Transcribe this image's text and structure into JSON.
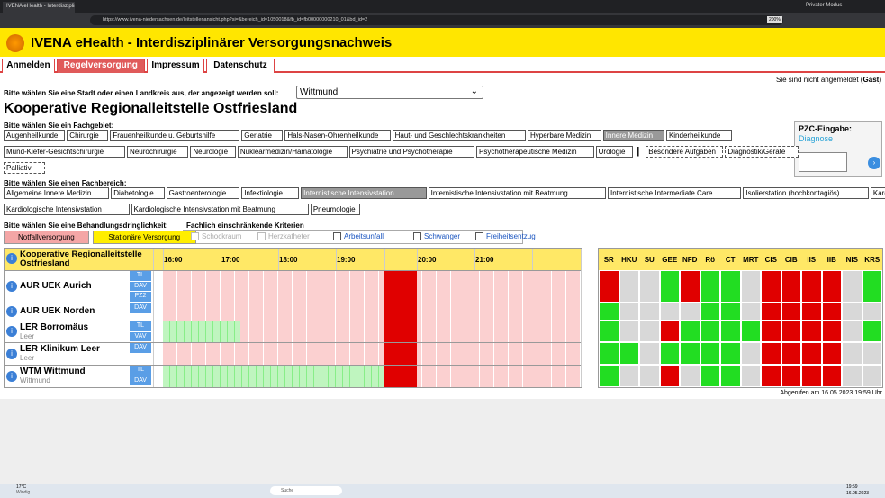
{
  "browser": {
    "tab_title": "IVENA eHealth - Interdisziplinä",
    "url": "https://www.ivena-niedersachsen.de/leitstellenansicht.php?si=&bereich_id=1050018&fb_id=fb00000000210_01&bd_id=2",
    "zoom": "200%",
    "private_mode": "Privater Modus"
  },
  "header": {
    "title": "IVENA eHealth - Interdisziplinärer Versorgungsnachweis"
  },
  "nav": [
    {
      "label": "Anmelden",
      "active": false
    },
    {
      "label": "Regelversorgung",
      "active": true
    },
    {
      "label": "Impressum",
      "active": false
    },
    {
      "label": "Datenschutz",
      "active": false
    }
  ],
  "login": {
    "text": "Sie sind nicht angemeldet",
    "user": "(Gast)"
  },
  "city": {
    "prompt": "Bitte wählen Sie eine Stadt oder einen Landkreis aus, der angezeigt werden soll:",
    "selected": "Wittmund"
  },
  "heading": "Kooperative Regionalleitstelle Ostfriesland",
  "fachgebiet": {
    "label": "Bitte wählen Sie ein Fachgebiet:",
    "rows": [
      [
        {
          "label": "Augenheilkunde"
        },
        {
          "label": "Chirurgie"
        },
        {
          "label": "Frauenheilkunde u. Geburtshilfe"
        },
        {
          "label": "Geriatrie"
        },
        {
          "label": "Hals-Nasen-Ohrenheilkunde"
        },
        {
          "label": "Haut- und Geschlechtskrankheiten"
        },
        {
          "label": "Hyperbare Medizin"
        },
        {
          "label": "Innere Medizin",
          "selected": true
        },
        {
          "label": "Kinderheilkunde"
        }
      ],
      [
        {
          "label": "Mund-Kiefer-Gesichtschirurgie"
        },
        {
          "label": "Neurochirurgie"
        },
        {
          "label": "Neurologie"
        },
        {
          "label": "Nuklearmedizin/Hämatologie"
        },
        {
          "label": "Psychiatrie und Psychotherapie"
        },
        {
          "label": "Psychotherapeutische Medizin"
        },
        {
          "label": "Urologie"
        },
        {
          "label": "|",
          "separator": true
        },
        {
          "label": "Besondere Aufgaben",
          "dashed": true
        },
        {
          "label": "Diagnostik/Geräte",
          "dashed": true
        }
      ],
      [
        {
          "label": "Palliativ",
          "dashed": true
        }
      ]
    ]
  },
  "fachbereich": {
    "label": "Bitte wählen Sie einen Fachbereich:",
    "rows": [
      [
        {
          "label": "Allgemeine Innere Medizin"
        },
        {
          "label": "Diabetologie"
        },
        {
          "label": "Gastroenterologie"
        },
        {
          "label": "Infektiologie"
        },
        {
          "label": "Internistische Intensivstation",
          "selected": true
        },
        {
          "label": "Internistische Intensivstation mit Beatmung"
        },
        {
          "label": "Internistische Intermediate Care"
        },
        {
          "label": "Isolierstation (hochkontagiös)"
        },
        {
          "label": "Kardiologie"
        }
      ],
      [
        {
          "label": "Kardiologische Intensivstation"
        },
        {
          "label": "Kardiologische Intensivstation mit Beatmung"
        },
        {
          "label": "Pneumologie"
        }
      ]
    ]
  },
  "dringlichkeit": {
    "label": "Bitte wählen Sie eine Behandlungsdringlichkeit:",
    "buttons": [
      {
        "label": "Notfallversorgung",
        "color": "#f4a6a6"
      },
      {
        "label": "Stationäre Versorgung",
        "color": "#ffee00"
      }
    ]
  },
  "kriterien": {
    "label": "Fachlich einschränkende Kriterien",
    "items": [
      {
        "label": "Schockraum",
        "disabled": true
      },
      {
        "label": "Herzkatheter",
        "disabled": true
      },
      {
        "label": "Arbeitsunfall",
        "disabled": false
      },
      {
        "label": "Schwanger",
        "disabled": false
      },
      {
        "label": "Freiheitsentzug",
        "disabled": false
      }
    ]
  },
  "pzc": {
    "title": "PZC-Eingabe:",
    "link": "Diagnose"
  },
  "table": {
    "region": "Kooperative Regionalleitstelle Ostfriesland",
    "info": "i",
    "times": [
      "16:00",
      "17:00",
      "18:00",
      "19:00",
      "20:00",
      "21:00"
    ],
    "status_columns": [
      "SR",
      "HKU",
      "SU",
      "GEE",
      "NFD",
      "Rö",
      "CT",
      "MRT",
      "CIS",
      "CIB",
      "IIS",
      "IIB",
      "NIS",
      "KRS"
    ],
    "rows": [
      {
        "name": "AUR UEK Aurich",
        "tags": [
          "TL",
          "DAV",
          "PZ2"
        ],
        "status": [
          "#e00000",
          "#d8d8d8",
          "#d8d8d8",
          "#22dd22",
          "#e00000",
          "#22dd22",
          "#22dd22",
          "#d8d8d8",
          "#e00000",
          "#e00000",
          "#e00000",
          "#e00000",
          "#d8d8d8",
          "#22dd22"
        ]
      },
      {
        "name": "AUR UEK Norden",
        "tags": [
          "DAV"
        ],
        "status": [
          "#22dd22",
          "#d8d8d8",
          "#d8d8d8",
          "#d8d8d8",
          "#d8d8d8",
          "#22dd22",
          "#22dd22",
          "#d8d8d8",
          "#e00000",
          "#e00000",
          "#e00000",
          "#e00000",
          "#d8d8d8",
          "#d8d8d8"
        ]
      },
      {
        "name": "LER Borromäus",
        "place": "Leer",
        "tags": [
          "TL",
          "VAV"
        ],
        "status": [
          "#22dd22",
          "#d8d8d8",
          "#d8d8d8",
          "#e00000",
          "#22dd22",
          "#22dd22",
          "#22dd22",
          "#22dd22",
          "#e00000",
          "#e00000",
          "#e00000",
          "#e00000",
          "#d8d8d8",
          "#22dd22"
        ]
      },
      {
        "name": "LER Klinikum Leer",
        "place": "Leer",
        "tags": [
          "DAV"
        ],
        "status": [
          "#22dd22",
          "#22dd22",
          "#d8d8d8",
          "#22dd22",
          "#22dd22",
          "#22dd22",
          "#22dd22",
          "#d8d8d8",
          "#e00000",
          "#e00000",
          "#e00000",
          "#e00000",
          "#d8d8d8",
          "#d8d8d8"
        ]
      },
      {
        "name": "WTM Wittmund",
        "place": "Wittmund",
        "tags": [
          "TL",
          "DAV"
        ],
        "status": [
          "#22dd22",
          "#d8d8d8",
          "#d8d8d8",
          "#e00000",
          "#d8d8d8",
          "#22dd22",
          "#22dd22",
          "#d8d8d8",
          "#e00000",
          "#e00000",
          "#e00000",
          "#e00000",
          "#d8d8d8",
          "#d8d8d8"
        ]
      }
    ]
  },
  "footer": "Abgerufen am 16.05.2023 19:59 Uhr",
  "taskbar": {
    "temperature": "17°C",
    "weather": "Windig",
    "search": "Suche",
    "time": "19:59",
    "date": "16.05.2023"
  }
}
